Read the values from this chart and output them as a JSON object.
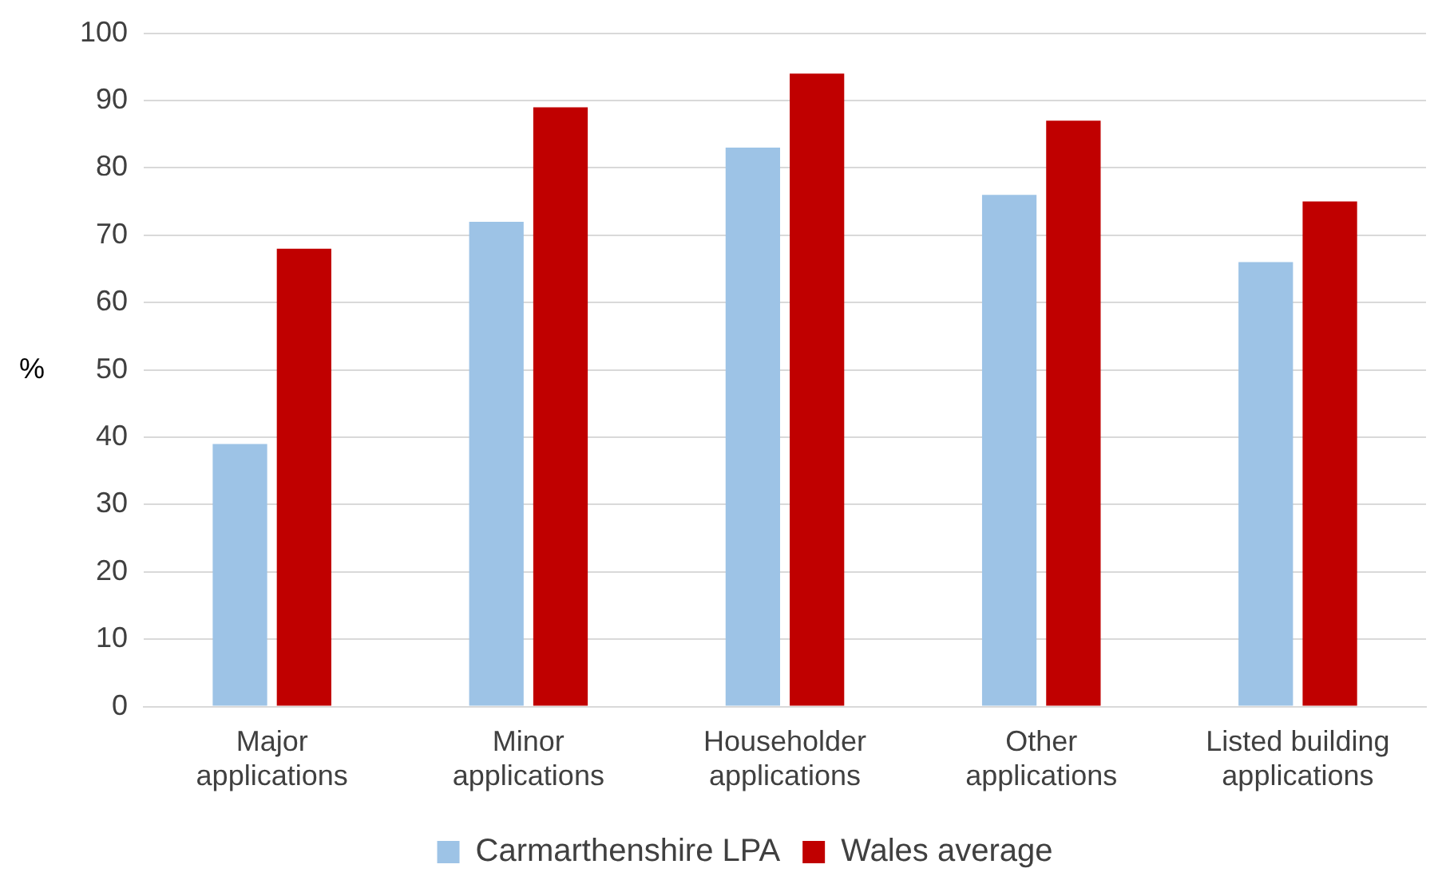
{
  "chart_data": {
    "type": "bar",
    "ylabel": "%",
    "categories": [
      "Major applications",
      "Minor applications",
      "Householder applications",
      "Other applications",
      "Listed building applications"
    ],
    "series": [
      {
        "name": "Carmarthenshire LPA",
        "color": "#9dc3e6",
        "values": [
          39,
          72,
          83,
          76,
          66
        ]
      },
      {
        "name": "Wales average",
        "color": "#c00000",
        "values": [
          68,
          89,
          94,
          87,
          75
        ]
      }
    ],
    "ylim": [
      0,
      100
    ],
    "yticks": [
      0,
      10,
      20,
      30,
      40,
      50,
      60,
      70,
      80,
      90,
      100
    ],
    "grid": "y",
    "legend": "bottom"
  }
}
